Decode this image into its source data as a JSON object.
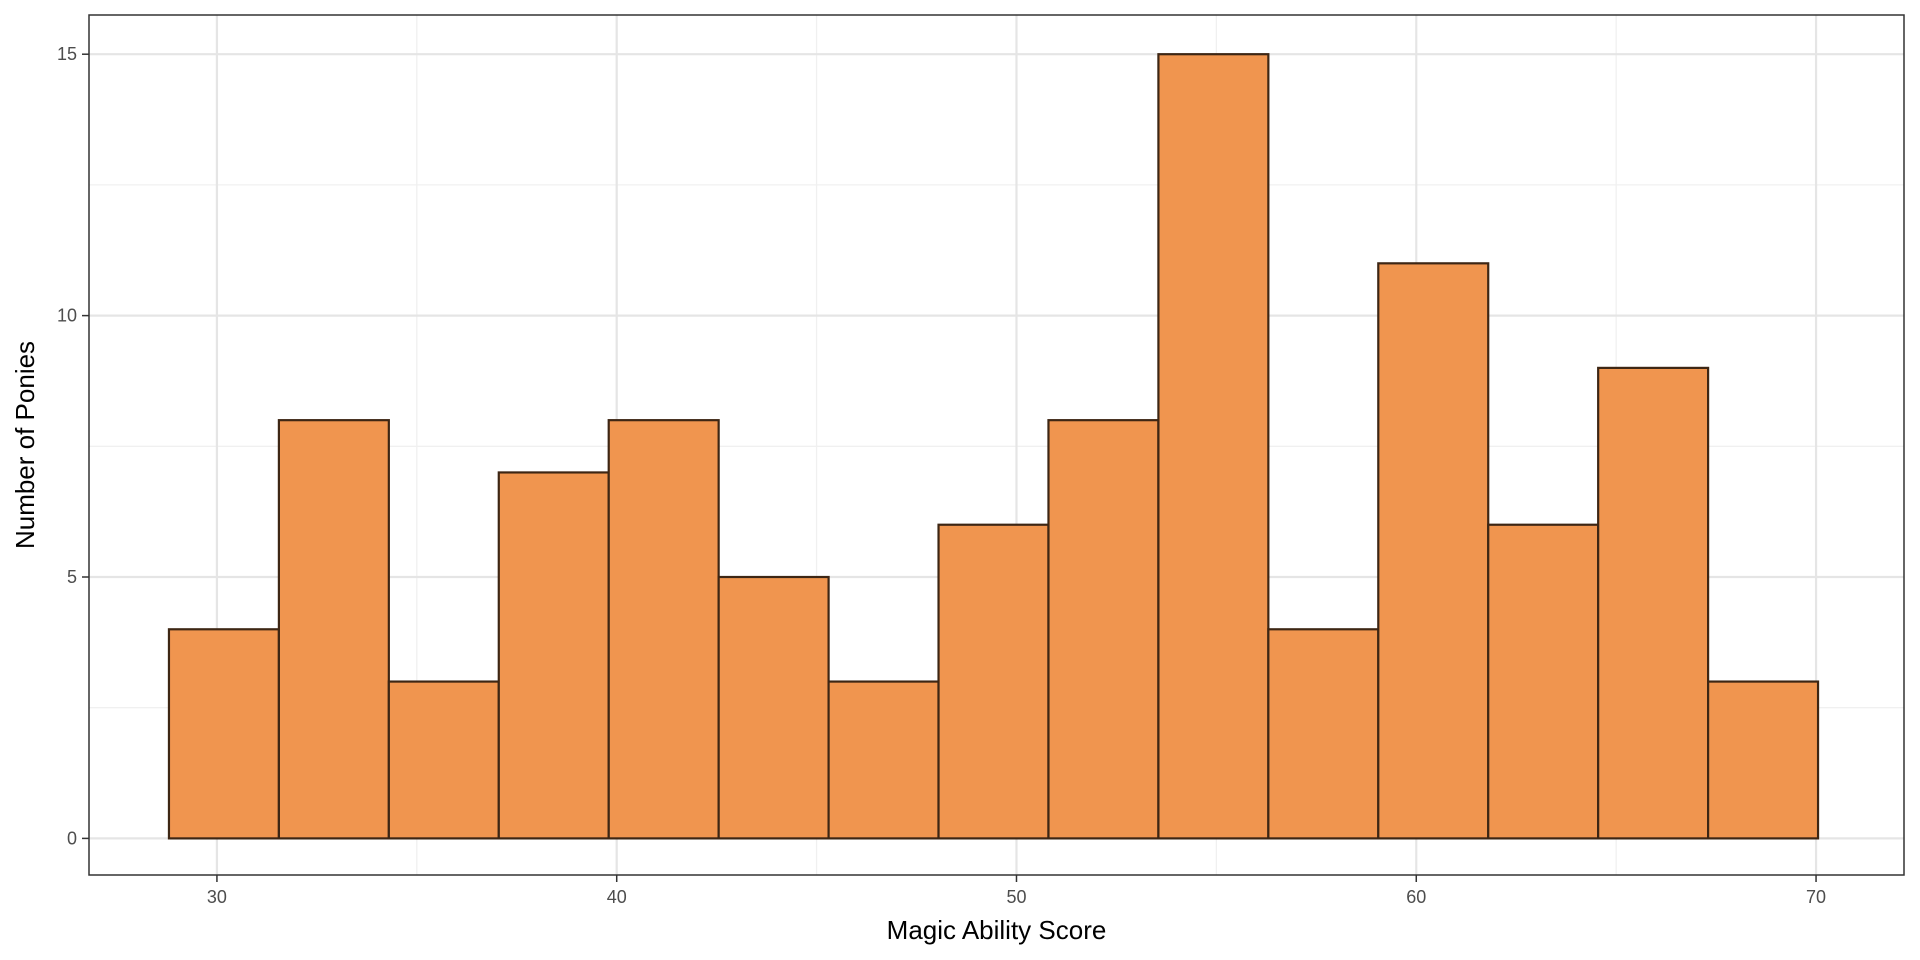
{
  "chart_data": {
    "type": "histogram",
    "xlabel": "Magic Ability Score",
    "ylabel": "Number of Ponies",
    "xlim": [
      26.8,
      72.2
    ],
    "ylim": [
      -0.7,
      15.75
    ],
    "x_ticks": [
      30,
      40,
      50,
      60,
      70
    ],
    "x_minor_ticks": [
      35,
      45,
      55,
      65
    ],
    "y_ticks": [
      0,
      5,
      10,
      15
    ],
    "y_minor_ticks": [
      2.5,
      7.5,
      12.5
    ],
    "grid": true,
    "bins": [
      {
        "x0": 28.8,
        "x1": 31.55,
        "count": 4
      },
      {
        "x0": 31.55,
        "x1": 34.3,
        "count": 8
      },
      {
        "x0": 34.3,
        "x1": 37.05,
        "count": 3
      },
      {
        "x0": 37.05,
        "x1": 39.8,
        "count": 7
      },
      {
        "x0": 39.8,
        "x1": 42.55,
        "count": 8
      },
      {
        "x0": 42.55,
        "x1": 45.3,
        "count": 5
      },
      {
        "x0": 45.3,
        "x1": 48.05,
        "count": 3
      },
      {
        "x0": 48.05,
        "x1": 50.8,
        "count": 6
      },
      {
        "x0": 50.8,
        "x1": 53.55,
        "count": 8
      },
      {
        "x0": 53.55,
        "x1": 56.3,
        "count": 15
      },
      {
        "x0": 56.3,
        "x1": 59.05,
        "count": 4
      },
      {
        "x0": 59.05,
        "x1": 61.8,
        "count": 11
      },
      {
        "x0": 61.8,
        "x1": 64.55,
        "count": 6
      },
      {
        "x0": 64.55,
        "x1": 67.3,
        "count": 9
      },
      {
        "x0": 67.3,
        "x1": 70.05,
        "count": 3
      }
    ],
    "colors": {
      "bar_fill": "#F0954F",
      "bar_stroke": "#3D2614",
      "grid_major": "#E5E5E5",
      "grid_minor": "#F0F0F0",
      "panel_border": "#333333"
    }
  }
}
